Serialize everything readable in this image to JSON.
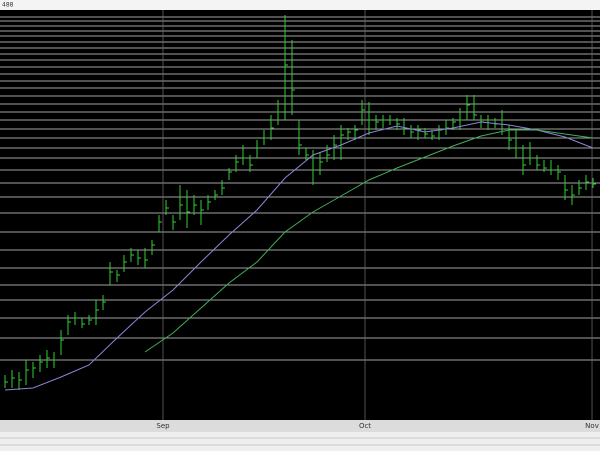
{
  "header": {
    "label": "488"
  },
  "chart_data": {
    "type": "ohlc",
    "high": [
      45,
      50,
      48,
      60,
      58,
      65,
      70,
      68,
      90,
      105,
      108,
      102,
      105,
      120,
      125,
      158,
      150,
      165,
      172,
      170,
      172,
      180,
      205,
      220,
      205,
      235,
      230,
      225,
      220,
      225,
      230,
      240,
      252,
      265,
      275,
      265,
      280,
      290,
      305,
      320,
      405,
      380,
      300,
      272,
      270,
      268,
      275,
      285,
      295,
      292,
      295,
      320,
      318,
      305,
      305,
      305,
      302,
      302,
      295,
      295,
      292,
      290,
      295,
      300,
      302,
      312,
      325,
      325,
      305,
      305,
      302,
      310,
      295,
      290,
      275,
      278,
      265,
      260,
      260,
      255,
      245,
      235,
      240,
      245,
      242
    ],
    "low": [
      32,
      32,
      30,
      35,
      42,
      48,
      52,
      52,
      65,
      85,
      95,
      92,
      95,
      95,
      110,
      135,
      138,
      148,
      158,
      155,
      152,
      165,
      188,
      205,
      190,
      200,
      192,
      205,
      195,
      210,
      220,
      225,
      240,
      248,
      255,
      248,
      262,
      275,
      280,
      295,
      300,
      305,
      265,
      260,
      235,
      245,
      258,
      260,
      260,
      280,
      280,
      295,
      285,
      290,
      292,
      295,
      290,
      285,
      282,
      280,
      282,
      280,
      280,
      285,
      290,
      290,
      300,
      300,
      292,
      290,
      292,
      285,
      270,
      262,
      245,
      255,
      250,
      248,
      245,
      240,
      220,
      215,
      225,
      230,
      232
    ],
    "close": [
      38,
      42,
      40,
      50,
      52,
      58,
      62,
      60,
      80,
      98,
      102,
      96,
      100,
      110,
      118,
      148,
      145,
      158,
      165,
      162,
      160,
      175,
      198,
      212,
      198,
      215,
      208,
      215,
      210,
      218,
      225,
      232,
      248,
      258,
      262,
      255,
      272,
      282,
      292,
      308,
      355,
      330,
      275,
      265,
      250,
      258,
      265,
      275,
      285,
      288,
      290,
      310,
      300,
      298,
      300,
      300,
      296,
      292,
      288,
      290,
      286,
      284,
      290,
      292,
      298,
      300,
      315,
      305,
      298,
      300,
      296,
      300,
      280,
      272,
      255,
      262,
      255,
      252,
      250,
      248,
      230,
      225,
      232,
      238,
      236
    ],
    "bar_color": "#33cc33",
    "series": [
      {
        "color": "#8a86d8",
        "x": [
          0,
          4,
          8,
          12,
          16,
          20,
          24,
          28,
          32,
          36,
          40,
          44,
          48,
          52,
          56,
          60,
          64,
          68,
          72,
          76,
          80,
          84
        ],
        "values": [
          30,
          32,
          43,
          55,
          82,
          108,
          130,
          158,
          185,
          210,
          242,
          265,
          275,
          287,
          294,
          288,
          292,
          298,
          295,
          290,
          283,
          272
        ]
      },
      {
        "color": "#3fae5a",
        "x": [
          20,
          24,
          28,
          32,
          36,
          40,
          44,
          48,
          52,
          56,
          60,
          64,
          68,
          72,
          76,
          80,
          84
        ],
        "values": [
          68,
          87,
          112,
          137,
          158,
          188,
          208,
          224,
          240,
          252,
          263,
          274,
          284,
          290,
          290,
          286,
          282
        ]
      }
    ],
    "xlim": [
      -0.714,
      85
    ],
    "xticks": [
      {
        "value": 22.57,
        "label": "Sep"
      },
      {
        "value": 51.43,
        "label": "Oct"
      },
      {
        "value": 83.86,
        "label": "Nov"
      }
    ],
    "ylim": [
      0,
      410
    ],
    "hlines": [
      403,
      399,
      394,
      389,
      384,
      378,
      372,
      366,
      360,
      353,
      346,
      339,
      332,
      324,
      316,
      308,
      300,
      291,
      282,
      272,
      262,
      250,
      237,
      223,
      207,
      188,
      170,
      152,
      135,
      120,
      102,
      82,
      60
    ],
    "grid": true
  }
}
